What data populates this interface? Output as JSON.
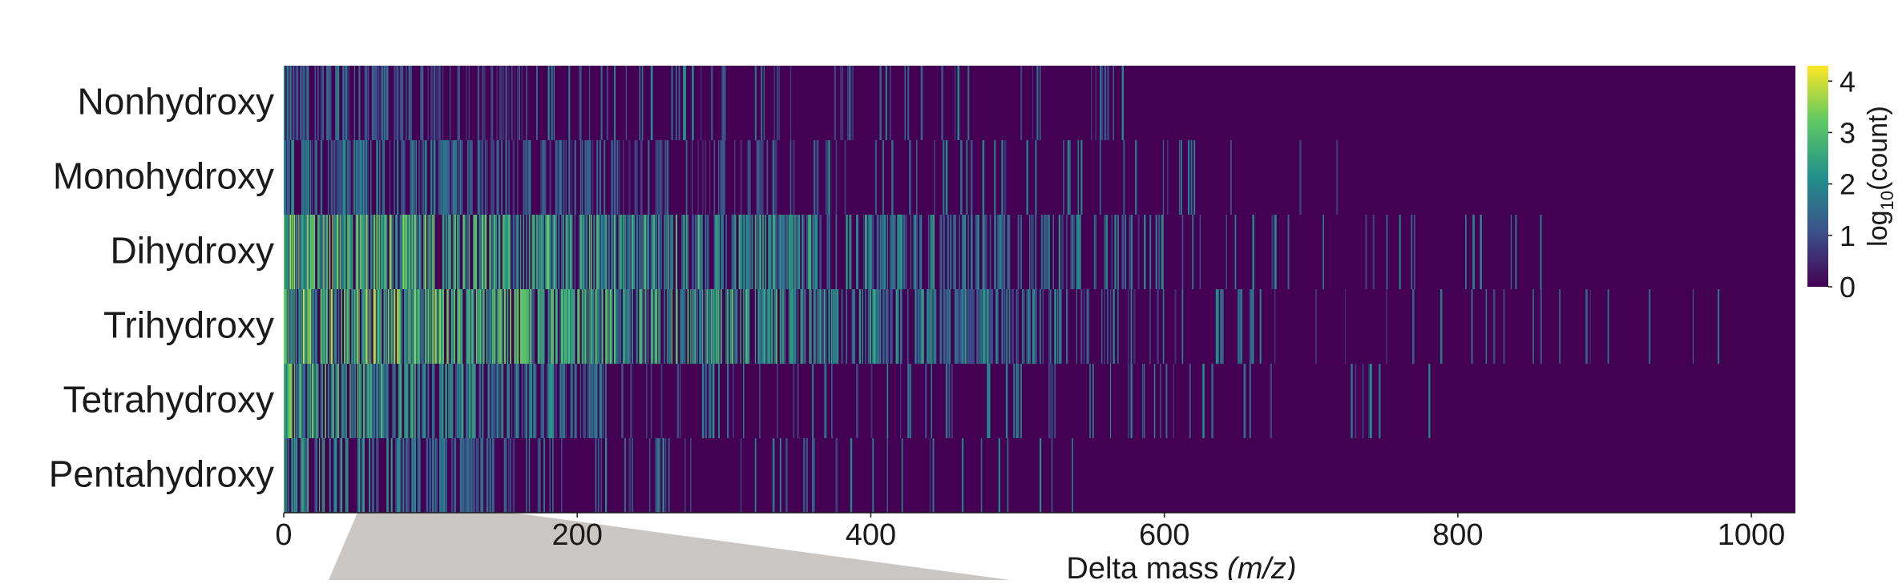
{
  "chart_data": {
    "type": "heatmap",
    "title": "",
    "xlabel": "Delta mass",
    "xlabel_unit": "(m/z)",
    "rows": [
      "Nonhydroxy",
      "Monohydroxy",
      "Dihydroxy",
      "Trihydroxy",
      "Tetrahydroxy",
      "Pentahydroxy"
    ],
    "xlim": [
      0,
      1030
    ],
    "xticks": [
      "0",
      "200",
      "400",
      "600",
      "800",
      "1000"
    ],
    "xtick_values": [
      0,
      200,
      400,
      600,
      800,
      1000
    ],
    "colorbar": {
      "label": "log10(count)",
      "label_main": "log",
      "label_sub": "10",
      "label_tail": "(count)",
      "range": [
        0,
        4.3
      ],
      "ticks": [
        "0",
        "1",
        "2",
        "3",
        "4"
      ],
      "tick_values": [
        0,
        1,
        2,
        3,
        4
      ],
      "colormap": [
        "#440154",
        "#3b528b",
        "#21918c",
        "#5ec962",
        "#fde725"
      ]
    },
    "background_value": 0,
    "row_profiles": [
      {
        "name": "Nonhydroxy",
        "dense_until": 165,
        "sparse_until": 640,
        "peak_level": 2.2,
        "density": 0.55
      },
      {
        "name": "Monohydroxy",
        "dense_until": 330,
        "sparse_until": 760,
        "peak_level": 2.4,
        "density": 0.6
      },
      {
        "name": "Dihydroxy",
        "dense_until": 540,
        "sparse_until": 860,
        "peak_level": 3.9,
        "density": 0.8
      },
      {
        "name": "Trihydroxy",
        "dense_until": 530,
        "sparse_until": 1030,
        "peak_level": 4.1,
        "density": 0.92
      },
      {
        "name": "Tetrahydroxy",
        "dense_until": 220,
        "sparse_until": 790,
        "peak_level": 3.6,
        "density": 0.75
      },
      {
        "name": "Pentahydroxy",
        "dense_until": 160,
        "sparse_until": 590,
        "peak_level": 3.2,
        "density": 0.6
      }
    ]
  }
}
